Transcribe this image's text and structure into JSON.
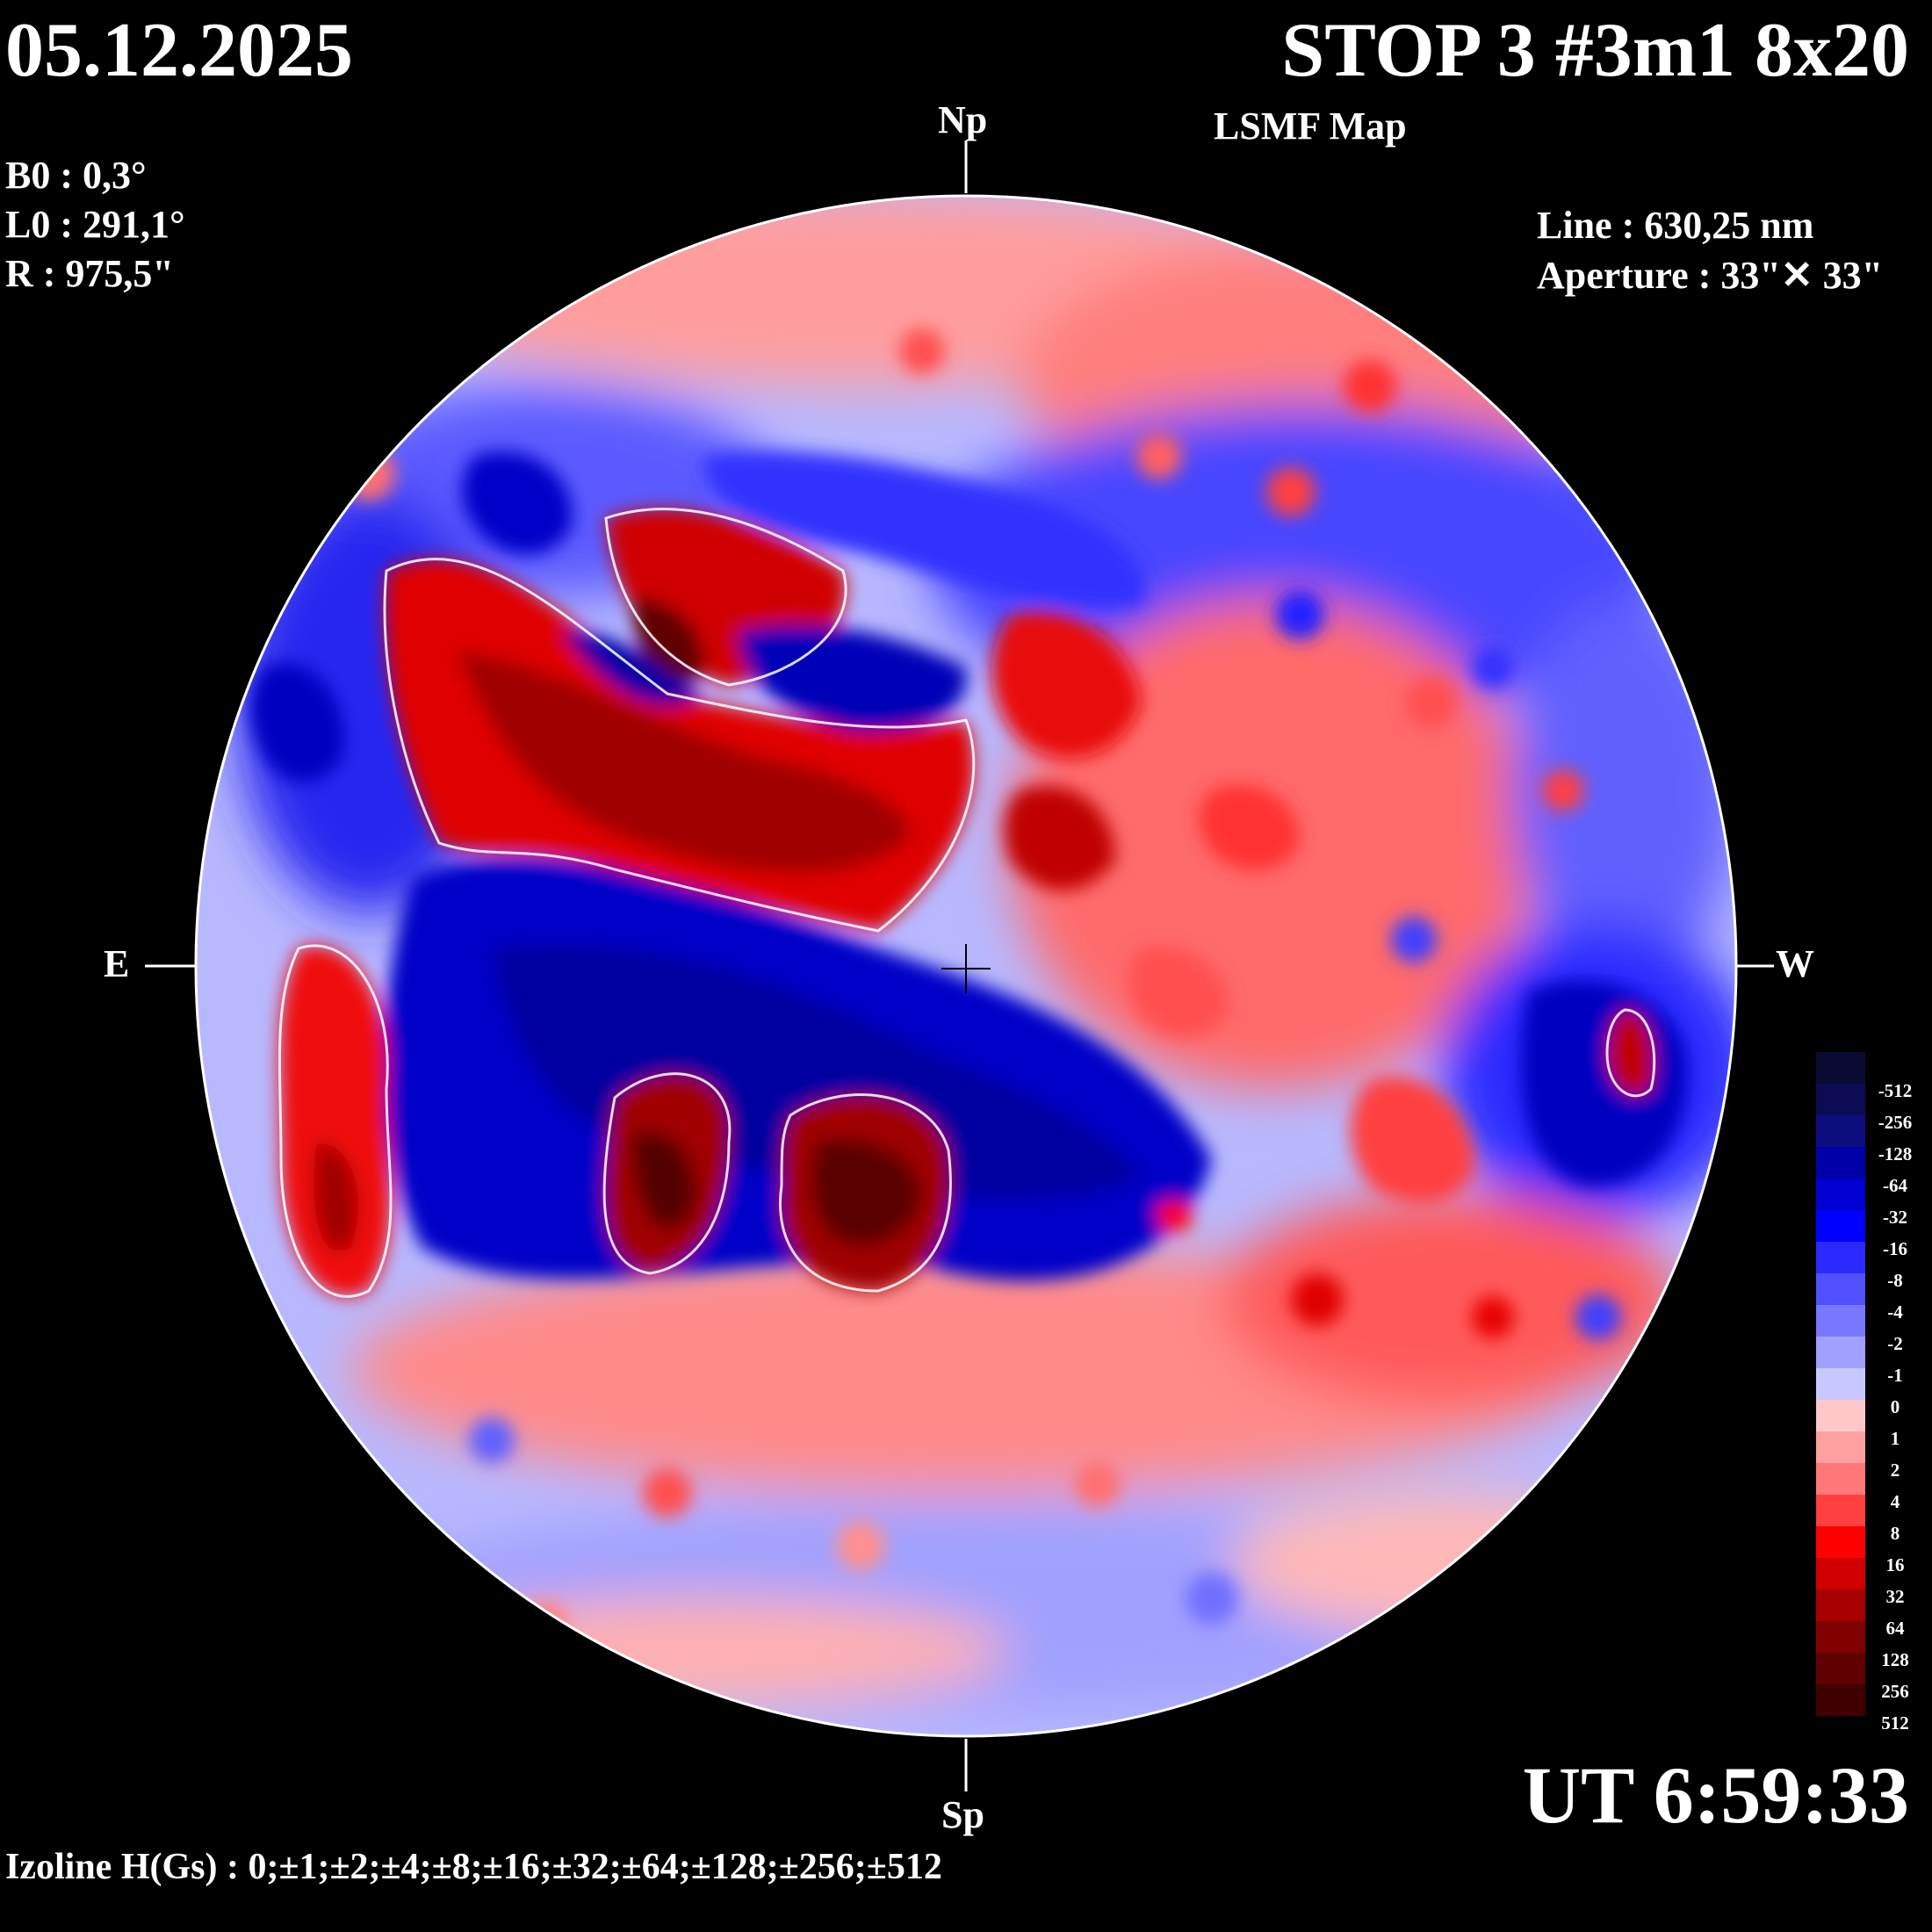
{
  "header": {
    "date": "05.12.2025",
    "title": "STOP 3 #3m1 8x20",
    "subtitle": "LSMF  Map"
  },
  "params": {
    "b0": "B0 : 0,3°",
    "l0": "L0 : 291,1°",
    "r": "R  : 975,5\""
  },
  "instrument": {
    "line": "Line :  630,25 nm",
    "aperture": "Aperture : 33\"✕ 33\""
  },
  "directions": {
    "north": "Np",
    "south": "Sp",
    "east": "E",
    "west": "W"
  },
  "time": "UT 6:59:33",
  "izoline": "Izoline H(Gs) : 0;±1;±2;±4;±8;±16;±32;±64;±128;±256;±512",
  "colorbar": {
    "labels": [
      "-512",
      "-256",
      "-128",
      "-64",
      "-32",
      "-16",
      "-8",
      "-4",
      "-2",
      "-1",
      "0",
      "1",
      "2",
      "4",
      "8",
      "16",
      "32",
      "64",
      "128",
      "256",
      "512"
    ],
    "colors": [
      "#0a0a33",
      "#0c0c55",
      "#0d0d80",
      "#0000a8",
      "#0000d0",
      "#0000ff",
      "#2a2aff",
      "#5050ff",
      "#7878ff",
      "#a0a0ff",
      "#c8c8ff",
      "#ffc8c8",
      "#ffa0a0",
      "#ff7878",
      "#ff4040",
      "#ff0000",
      "#d00000",
      "#a80000",
      "#800000",
      "#600000",
      "#400000"
    ]
  }
}
